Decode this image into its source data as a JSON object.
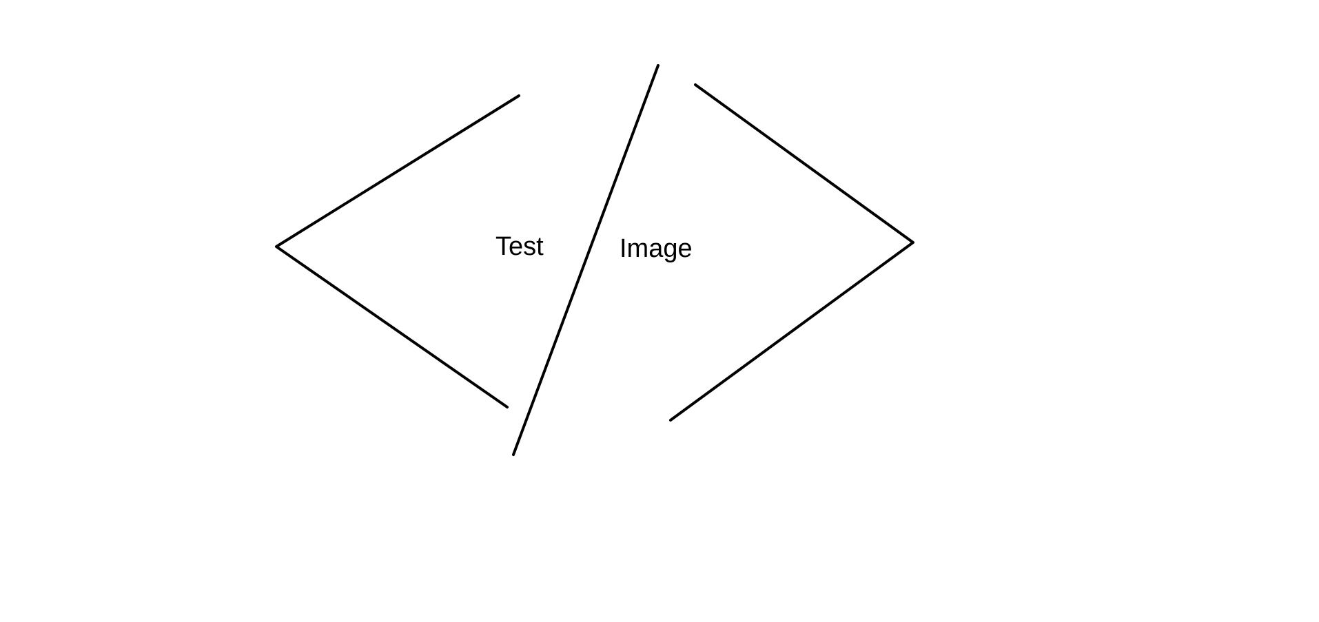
{
  "drawing": {
    "stroke_color": "#000000",
    "background_color": "#ffffff",
    "text_color": "#000000",
    "labels": {
      "left": "Test",
      "right": "Image"
    }
  }
}
